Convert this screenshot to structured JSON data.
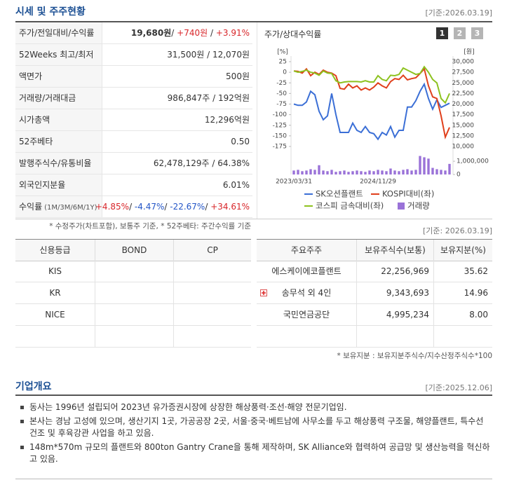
{
  "header": {
    "title": "시세 및 주주현황",
    "date": "[기준:2026.03.19]"
  },
  "quote_table": {
    "rows": [
      {
        "label": "주가/전일대비/수익률",
        "value": [
          "19,680원",
          "/ ",
          "+740원",
          " / ",
          "+3.91%"
        ]
      },
      {
        "label": "52Weeks 최고/최저",
        "value": [
          "31,500원 / 12,070원"
        ]
      },
      {
        "label": "액면가",
        "value": [
          "500원"
        ]
      },
      {
        "label": "거래량/거래대금",
        "value": [
          "986,847주 / 192억원"
        ]
      },
      {
        "label": "시가총액",
        "value": [
          "12,296억원"
        ]
      },
      {
        "label": "52주베타",
        "value": [
          "0.50"
        ]
      },
      {
        "label": "발행주식수/유통비율",
        "value": [
          "62,478,129주 / 64.38%"
        ]
      },
      {
        "label": "외국인지분율",
        "value": [
          "6.01%"
        ]
      },
      {
        "label": "수익률",
        "sublabel": "(1M/3M/6M/1Y)",
        "value": [
          "+4.85%",
          "/ ",
          "-4.47%",
          "/ ",
          "-22.67%",
          "/ ",
          "+34.61%"
        ]
      }
    ]
  },
  "quote_note": "* 수정주가(차트포함), 보통주 기준, * 52주베타: 주간수익률 기준",
  "chart_panel": {
    "title": "주가/상대수익률",
    "tabs": [
      "1",
      "2",
      "3"
    ],
    "chart_data": {
      "type": "line",
      "ylabel": "[%]",
      "y2label": "[원]",
      "categories": [
        "2023/03/31",
        null,
        null,
        null,
        null,
        null,
        null,
        null,
        null,
        null,
        null,
        null,
        null,
        null,
        null,
        null,
        null,
        null,
        null,
        null,
        "2024/11/29",
        null,
        null,
        null,
        null,
        null,
        null,
        null,
        null,
        null,
        null,
        null,
        null,
        null,
        null,
        null,
        null,
        null
      ],
      "ylim": [
        -175,
        25
      ],
      "yticks": [
        25,
        0,
        -25,
        -50,
        -75,
        -100,
        -125,
        -150,
        -175
      ],
      "y2lim": [
        10000,
        30000
      ],
      "y2ticks": [
        {
          "value": 30000,
          "label": "30,000"
        },
        {
          "value": 27500,
          "label": "27,500"
        },
        {
          "value": 25000,
          "label": "25,000"
        },
        {
          "value": 22500,
          "label": "22,500"
        },
        {
          "value": 20000,
          "label": "20,000"
        },
        {
          "value": 17500,
          "label": "17,500"
        },
        {
          "value": 15000,
          "label": "15,000"
        },
        {
          "value": 12500,
          "label": "12,500"
        },
        {
          "value": 10000,
          "label": "10,000"
        }
      ],
      "vlim": [
        0,
        1800000
      ],
      "vticks": [
        {
          "value": 1000000,
          "label": "1,000,000"
        },
        0
      ],
      "series": [
        {
          "name": "SK오션플랜트",
          "color": "#3b6fd6",
          "axis": "y2",
          "values": [
            20000,
            19700,
            19700,
            20500,
            23000,
            22200,
            18300,
            16300,
            17200,
            22500,
            17500,
            13300,
            13300,
            13300,
            15500,
            13800,
            13300,
            14700,
            13300,
            13000,
            11700,
            13300,
            12700,
            14700,
            12200,
            13800,
            13800,
            19300,
            19300,
            20800,
            23000,
            24700,
            21300,
            18800,
            21000,
            19200,
            19700,
            20200
          ]
        },
        {
          "name": "KOSPI대비(좌)",
          "color": "#e0401c",
          "values": [
            3,
            2,
            -2,
            8,
            -8,
            0,
            -5,
            5,
            0,
            -2,
            -8,
            -38,
            -40,
            -28,
            -37,
            -32,
            -42,
            -37,
            -42,
            -35,
            -25,
            -32,
            -37,
            -22,
            -15,
            -17,
            -7,
            -18,
            -15,
            -13,
            -3,
            8,
            -32,
            -58,
            -62,
            -103,
            -153,
            -130
          ]
        },
        {
          "name": "코스피 금속대비(좌)",
          "color": "#8dc21f",
          "values": [
            3,
            0,
            2,
            5,
            0,
            -2,
            -7,
            3,
            -2,
            -3,
            -20,
            -25,
            -23,
            -22,
            -22,
            -22,
            -23,
            -20,
            -23,
            -23,
            -8,
            -17,
            -20,
            -7,
            -8,
            -5,
            10,
            5,
            0,
            -5,
            -3,
            13,
            0,
            -17,
            -25,
            -62,
            -72,
            -50
          ]
        },
        {
          "name": "거래량",
          "color": "#9a72d8",
          "type": "bar",
          "axis": "v",
          "values": [
            300000,
            350000,
            250000,
            300000,
            400000,
            350000,
            700000,
            300000,
            250000,
            350000,
            200000,
            250000,
            300000,
            200000,
            250000,
            300000,
            250000,
            200000,
            300000,
            250000,
            350000,
            300000,
            250000,
            450000,
            300000,
            250000,
            350000,
            400000,
            300000,
            350000,
            1400000,
            1300000,
            1200000,
            500000,
            400000,
            350000,
            300000,
            800000
          ]
        }
      ]
    }
  },
  "holder_date": "[기준: 2026.03.19]",
  "credit_table": {
    "headers": [
      "신용등급",
      "BOND",
      "CP"
    ],
    "rows": [
      [
        "KIS"
      ],
      [
        "KR"
      ],
      [
        "NICE"
      ]
    ]
  },
  "holder_table": {
    "headers": [
      "주요주주",
      "보유주식수(보통)",
      "보유지분(%)"
    ],
    "rows": [
      [
        "에스케이에코플랜트",
        "22,256,969",
        "35.62"
      ],
      [
        "송무석 외 4인",
        "9,343,693",
        "14.96"
      ],
      [
        "국민연금공단",
        "4,995,234",
        "8.00"
      ]
    ]
  },
  "holder_note": "* 보유지분 : 보유지분주식수/지수산정주식수*100",
  "overview": {
    "title": "기업개요",
    "date": "[기준:2025.12.06]",
    "items": [
      "동사는 1996년 설립되어 2023년 유가증권시장에 상장한 해상풍력·조선·해양 전문기업임.",
      "본사는 경남 고성에 있으며, 생산기지 1곳, 가공공장 2곳, 서울·중국·베트남에 사무소를 두고 해상풍력 구조물, 해양플랜트, 특수선 건조 및 후육강관 사업을 하고 있음.",
      "148m*570m 규모의 플랜트와 800ton Gantry Crane을 통해 제작하며, SK Alliance와 협력하여 공급망 및 생산능력을 혁신하고 있음."
    ]
  }
}
